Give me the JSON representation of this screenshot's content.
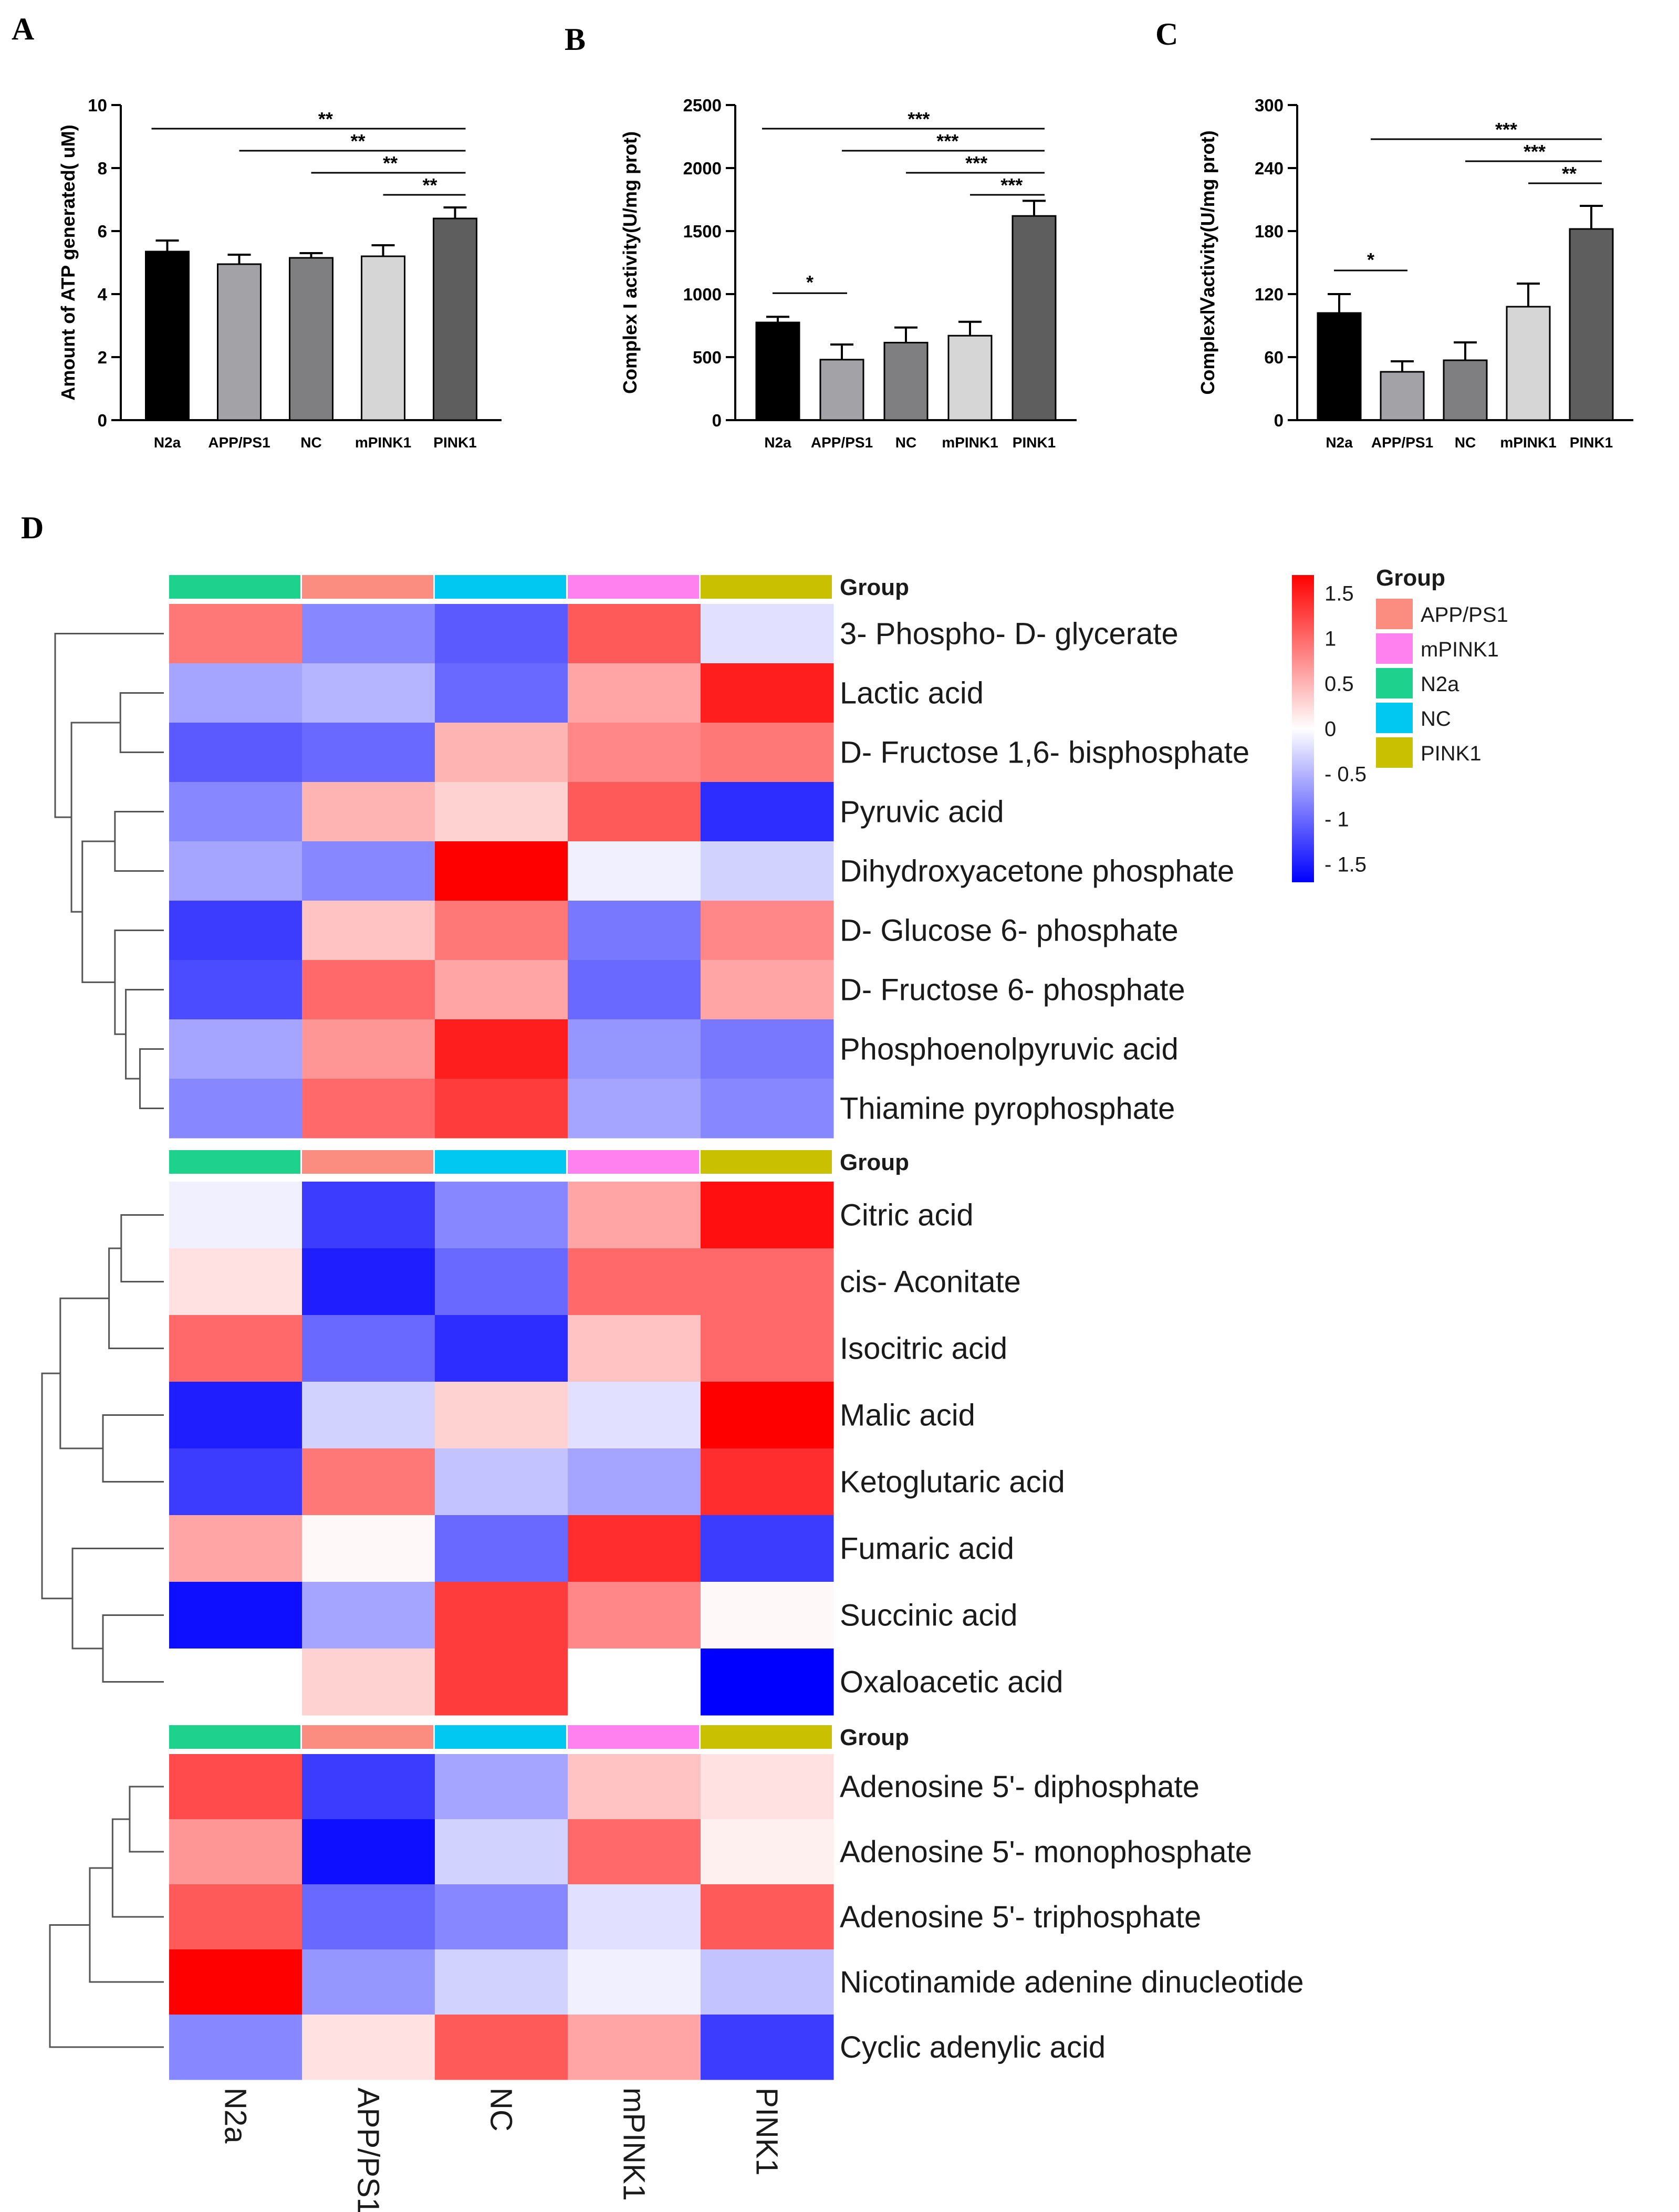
{
  "panels": {
    "a": "A",
    "b": "B",
    "c": "C",
    "d": "D"
  },
  "colors": {
    "N2a": "#000000",
    "APP/PS1": "#a3a3a7",
    "NC": "#7f7f82",
    "mPINK1": "#d6d6d6",
    "PINK1": "#5e5e5e",
    "heat_low": "#0000ff",
    "heat_mid": "#ffffff",
    "heat_high": "#ff0000",
    "group_N2a": "#1ed18c",
    "group_APP/PS1": "#fa8c80",
    "group_NC": "#00c8f0",
    "group_mPINK1": "#ff80ef",
    "group_PINK1": "#c8c000"
  },
  "chart_data": [
    {
      "type": "bar",
      "panel": "A",
      "ylabel": "Amount of ATP generated( uM)",
      "categories": [
        "N2a",
        "APP/PS1",
        "NC",
        "mPINK1",
        "PINK1"
      ],
      "values": [
        5.35,
        4.95,
        5.15,
        5.2,
        6.4
      ],
      "errors": [
        0.35,
        0.3,
        0.15,
        0.35,
        0.35
      ],
      "ylim": [
        0,
        10
      ],
      "yticks": [
        "0",
        "2",
        "4",
        "6",
        "8",
        "10"
      ],
      "tick_values": [
        0,
        2,
        4,
        6,
        8,
        10
      ],
      "significance": [
        {
          "from": 0,
          "to": 4,
          "label": "**"
        },
        {
          "from": 1,
          "to": 4,
          "label": "**"
        },
        {
          "from": 2,
          "to": 4,
          "label": "**"
        },
        {
          "from": 3,
          "to": 4,
          "label": "**"
        }
      ]
    },
    {
      "type": "bar",
      "panel": "B",
      "ylabel": "Complex I activity(U/mg prot)",
      "categories": [
        "N2a",
        "APP/PS1",
        "NC",
        "mPINK1",
        "PINK1"
      ],
      "values": [
        775,
        480,
        615,
        670,
        1620
      ],
      "errors": [
        45,
        120,
        120,
        110,
        120
      ],
      "ylim": [
        0,
        2500
      ],
      "yticks": [
        "0",
        "500",
        "1000",
        "1500",
        "2000",
        "2500"
      ],
      "tick_values": [
        0,
        500,
        1000,
        1500,
        2000,
        2500
      ],
      "significance": [
        {
          "from": 0,
          "to": 4,
          "label": "***"
        },
        {
          "from": 1,
          "to": 4,
          "label": "***"
        },
        {
          "from": 2,
          "to": 4,
          "label": "***"
        },
        {
          "from": 3,
          "to": 4,
          "label": "***"
        },
        {
          "from": 0,
          "to": 1,
          "label": "*"
        }
      ]
    },
    {
      "type": "bar",
      "panel": "C",
      "ylabel": "ComplexⅣactivity(U/mg prot)",
      "categories": [
        "N2a",
        "APP/PS1",
        "NC",
        "mPINK1",
        "PINK1"
      ],
      "values": [
        102,
        46,
        57,
        108,
        182
      ],
      "errors": [
        18,
        10,
        17,
        22,
        22
      ],
      "ylim": [
        0,
        300
      ],
      "yticks": [
        "0",
        "60",
        "120",
        "180",
        "240",
        "300"
      ],
      "tick_values": [
        0,
        60,
        120,
        180,
        240,
        300
      ],
      "significance": [
        {
          "from": 1,
          "to": 4,
          "label": "***"
        },
        {
          "from": 2,
          "to": 4,
          "label": "***"
        },
        {
          "from": 3,
          "to": 4,
          "label": "**"
        },
        {
          "from": 0,
          "to": 1,
          "label": "*"
        }
      ]
    },
    {
      "type": "heatmap",
      "panel": "D",
      "columns": [
        "N2a",
        "APP/PS1",
        "NC",
        "mPINK1",
        "PINK1"
      ],
      "group_label": "Group",
      "color_range": [
        -1.7,
        1.7
      ],
      "colorbar_ticks": [
        "1.5",
        "1",
        "0.5",
        "0",
        "- 0.5",
        "- 1",
        "- 1.5"
      ],
      "colorbar_values": [
        1.5,
        1,
        0.5,
        0,
        -0.5,
        -1,
        -1.5
      ],
      "legend_title": "Group",
      "legend": [
        "APP/PS1",
        "mPINK1",
        "N2a",
        "NC",
        "PINK1"
      ],
      "blocks": [
        {
          "rows": [
            "3- Phospho- D- glycerate",
            "Lactic acid",
            "D- Fructose 1,6- bisphosphate",
            "Pyruvic acid",
            "Dihydroxyacetone phosphate",
            "D- Glucose 6- phosphate",
            "D- Fructose 6- phosphate",
            "Phosphoenolpyruvic acid",
            "Thiamine pyrophosphate"
          ],
          "values": [
            [
              0.9,
              -0.8,
              -1.1,
              1.1,
              -0.2
            ],
            [
              -0.6,
              -0.5,
              -1.0,
              0.6,
              1.5
            ],
            [
              -1.1,
              -1.0,
              0.5,
              0.8,
              0.9
            ],
            [
              -0.8,
              0.5,
              0.3,
              1.1,
              -1.4
            ],
            [
              -0.6,
              -0.8,
              1.7,
              -0.1,
              -0.3
            ],
            [
              -1.3,
              0.4,
              0.9,
              -0.9,
              0.8
            ],
            [
              -1.2,
              1.0,
              0.6,
              -1.0,
              0.6
            ],
            [
              -0.6,
              0.7,
              1.5,
              -0.7,
              -0.9
            ],
            [
              -0.8,
              1.0,
              1.3,
              -0.6,
              -0.8
            ]
          ],
          "dendrogram": {
            "leaf_order": [
              0,
              1,
              2,
              3,
              4,
              5,
              6,
              7,
              8
            ],
            "merges": [
              [
                1,
                2,
                0.4
              ],
              [
                3,
                4,
                0.45
              ],
              [
                7,
                8,
                0.22
              ],
              [
                6,
                11,
                0.35
              ],
              [
                5,
                12,
                0.45
              ],
              [
                10,
                13,
                0.75
              ],
              [
                9,
                14,
                0.85
              ],
              [
                0,
                15,
                1.0
              ]
            ]
          }
        },
        {
          "rows": [
            "Citric acid",
            "cis- Aconitate",
            "Isocitric acid",
            "Malic acid",
            "Ketoglutaric acid",
            "Fumaric acid",
            "Succinic acid",
            "Oxaloacetic acid"
          ],
          "values": [
            [
              -0.1,
              -1.3,
              -0.8,
              0.6,
              1.6
            ],
            [
              0.2,
              -1.5,
              -1.0,
              1.0,
              1.0
            ],
            [
              1.0,
              -1.0,
              -1.4,
              0.4,
              1.0
            ],
            [
              -1.5,
              -0.3,
              0.3,
              -0.2,
              1.7
            ],
            [
              -1.3,
              0.9,
              -0.4,
              -0.6,
              1.4
            ],
            [
              0.6,
              0.05,
              -1.0,
              1.4,
              -1.3
            ],
            [
              -1.6,
              -0.6,
              1.3,
              0.8,
              0.05
            ],
            [
              0.0,
              0.3,
              1.3,
              0.0,
              -1.7
            ]
          ],
          "dendrogram": {
            "leaf_order": [
              0,
              1,
              2,
              3,
              4,
              5,
              6,
              7
            ],
            "merges": [
              [
                0,
                1,
                0.35
              ],
              [
                8,
                2,
                0.45
              ],
              [
                3,
                4,
                0.5
              ],
              [
                9,
                10,
                0.85
              ],
              [
                6,
                7,
                0.5
              ],
              [
                5,
                12,
                0.75
              ],
              [
                11,
                13,
                1.0
              ]
            ]
          }
        },
        {
          "rows": [
            "Adenosine 5'- diphosphate",
            "Adenosine 5'- monophosphate",
            "Adenosine 5'- triphosphate",
            "Nicotinamide adenine dinucleotide",
            "Cyclic adenylic acid"
          ],
          "values": [
            [
              1.2,
              -1.3,
              -0.6,
              0.4,
              0.2
            ],
            [
              0.7,
              -1.6,
              -0.3,
              1.0,
              0.1
            ],
            [
              1.1,
              -1.0,
              -0.8,
              -0.2,
              1.1
            ],
            [
              1.7,
              -0.7,
              -0.3,
              -0.1,
              -0.4
            ],
            [
              -0.8,
              0.2,
              1.1,
              0.6,
              -1.3
            ]
          ],
          "dendrogram": {
            "leaf_order": [
              0,
              1,
              2,
              3,
              4
            ],
            "merges": [
              [
                0,
                1,
                0.3
              ],
              [
                5,
                2,
                0.45
              ],
              [
                6,
                3,
                0.65
              ],
              [
                7,
                4,
                1.0
              ]
            ]
          }
        }
      ]
    }
  ]
}
